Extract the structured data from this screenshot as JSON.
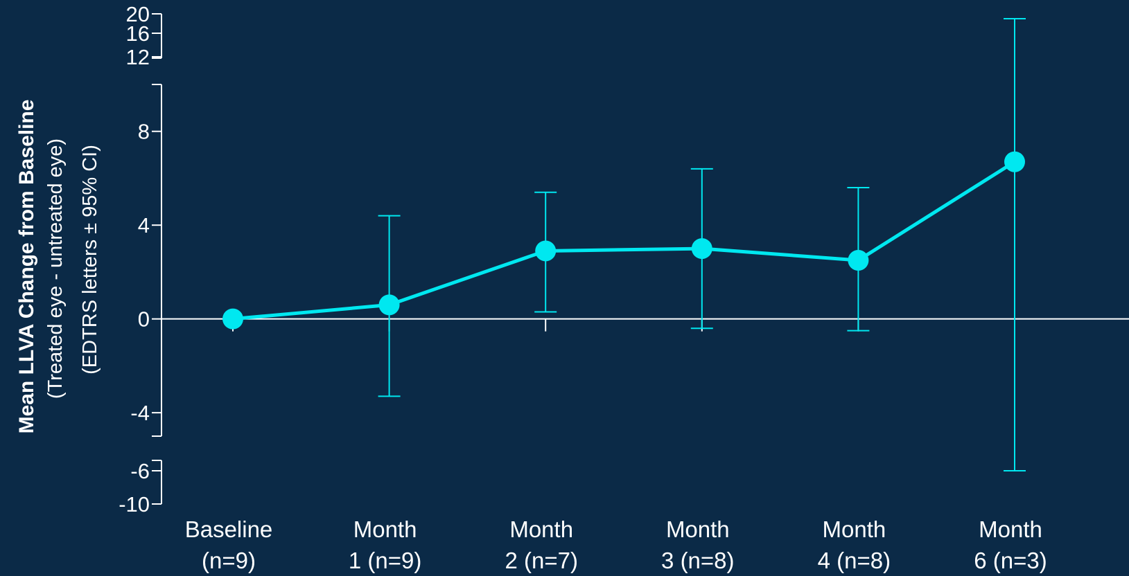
{
  "chart_data": {
    "type": "line",
    "ylabel": {
      "line1": "Mean LLVA Change from Baseline",
      "line2": "(Treated eye - untreated eye)",
      "line3": "(EDTRS letters ± 95% CI)"
    },
    "categories": [
      [
        "Baseline",
        "(n=9)"
      ],
      [
        "Month",
        "1 (n=9)"
      ],
      [
        "Month",
        "2 (n=7)"
      ],
      [
        "Month",
        "3 (n=8)"
      ],
      [
        "Month",
        "4 (n=8)"
      ],
      [
        "Month",
        "6 (n=3)"
      ]
    ],
    "yticks_main": [
      "8",
      "4",
      "0",
      "-4"
    ],
    "yticks_upper_break": [
      "20",
      "16",
      "12"
    ],
    "yticks_lower_break": [
      "-6",
      "-10"
    ],
    "axis_break": true,
    "ylim": [
      -10,
      20
    ],
    "series": [
      {
        "values": [
          0,
          0.6,
          2.9,
          3.0,
          2.5,
          6.7
        ],
        "ci_lower": [
          0,
          -3.3,
          0.3,
          -0.4,
          -0.5,
          -6
        ],
        "ci_upper": [
          0,
          4.4,
          5.4,
          6.4,
          5.6,
          19
        ],
        "color": "#00e8f0"
      }
    ],
    "colors": {
      "background": "#0b2a47",
      "axis": "#ffffff",
      "series": "#00e8f0"
    },
    "grid": false
  }
}
